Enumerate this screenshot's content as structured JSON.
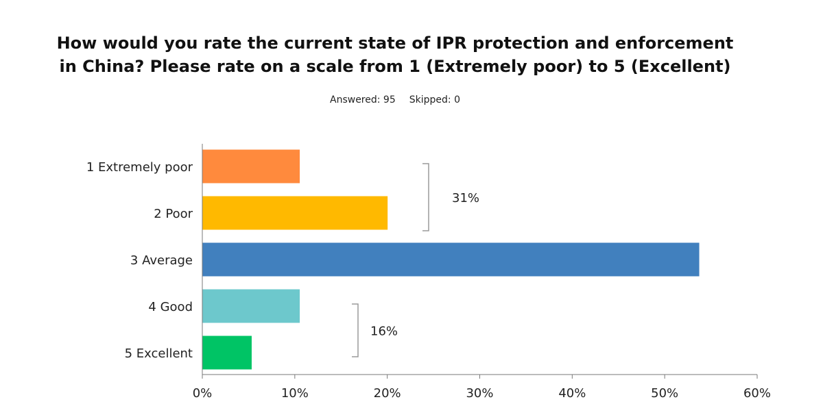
{
  "chart_data": {
    "type": "bar",
    "orientation": "horizontal",
    "title_lines": [
      "How would you rate the current state of IPR protection and enforcement",
      "in China? Please rate on a scale from 1 (Extremely poor) to 5 (Excellent)"
    ],
    "subtitle": {
      "answered": "Answered: 95",
      "skipped": "Skipped: 0"
    },
    "categories": [
      "1 Extremely poor",
      "2 Poor",
      "3 Average",
      "4 Good",
      "5 Excellent"
    ],
    "values": [
      10.5,
      20,
      53.7,
      10.5,
      5.3
    ],
    "colors": [
      "#ff8a3d",
      "#ffb900",
      "#4180be",
      "#6dc8cc",
      "#00c465"
    ],
    "xlim": [
      0,
      60
    ],
    "xticks": [
      0,
      10,
      20,
      30,
      40,
      50,
      60
    ],
    "tick_suffix": "%",
    "grid": false,
    "groups": [
      {
        "label": "31%",
        "categories": [
          "1 Extremely poor",
          "2 Poor"
        ]
      },
      {
        "label": "16%",
        "categories": [
          "4 Good",
          "5 Excellent"
        ]
      }
    ]
  }
}
